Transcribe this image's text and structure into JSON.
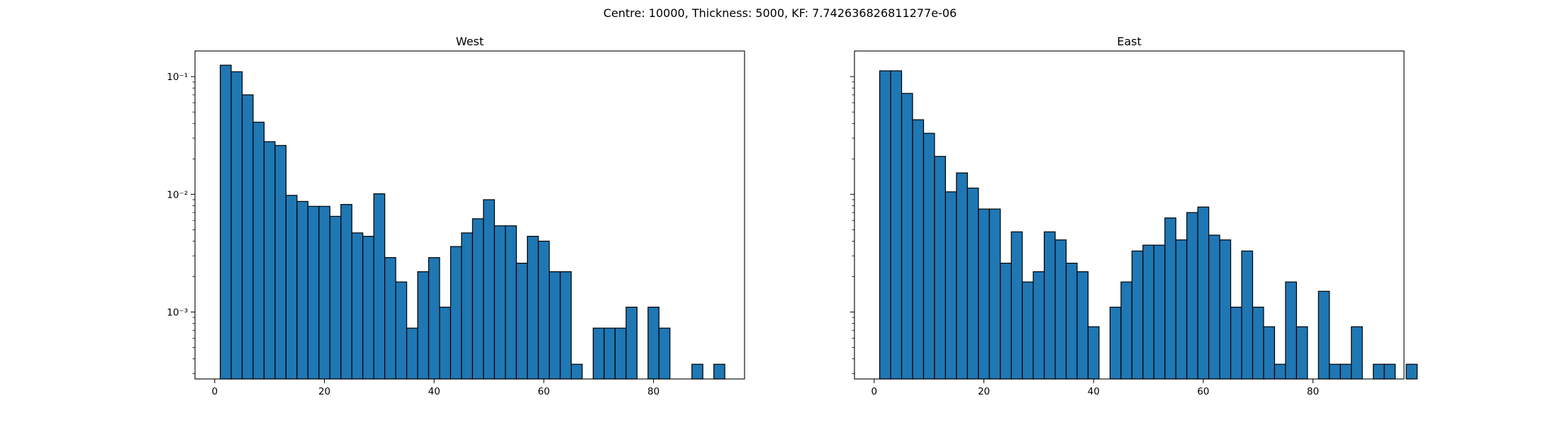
{
  "suptitle": "Centre: 10000, Thickness: 5000, KF: 7.742636826811277e-06",
  "colors": {
    "bar_fill": "#1f77b4",
    "bar_edge": "#000000",
    "axes": "#000000"
  },
  "chart_data": [
    {
      "type": "bar",
      "title": "West",
      "yscale": "log",
      "xlim": [
        -3.6,
        96.6
      ],
      "ylim": [
        0.00027,
        0.165
      ],
      "bin_width": 2,
      "x_start": 1,
      "xticks": [
        0,
        20,
        40,
        60,
        80
      ],
      "yticks": [
        {
          "value": 0.001,
          "label": "10⁻³"
        },
        {
          "value": 0.01,
          "label": "10⁻²"
        },
        {
          "value": 0.1,
          "label": "10⁻¹"
        }
      ],
      "values": [
        0.125,
        0.11,
        0.07,
        0.041,
        0.028,
        0.026,
        0.0098,
        0.0087,
        0.0079,
        0.0079,
        0.0065,
        0.0082,
        0.0047,
        0.0044,
        0.0101,
        0.0029,
        0.0018,
        0.00073,
        0.0022,
        0.0029,
        0.0011,
        0.0036,
        0.0047,
        0.0062,
        0.009,
        0.0054,
        0.0054,
        0.0026,
        0.0044,
        0.004,
        0.0022,
        0.0022,
        0.00036,
        0,
        0.00073,
        0.00073,
        0.00073,
        0.0011,
        0,
        0.0011,
        0.00073,
        0,
        0,
        0.00036,
        0,
        0.00036,
        0,
        0
      ]
    },
    {
      "type": "bar",
      "title": "East",
      "yscale": "log",
      "xlim": [
        -3.6,
        96.6
      ],
      "ylim": [
        0.00027,
        0.165
      ],
      "bin_width": 2,
      "x_start": 1,
      "xticks": [
        0,
        20,
        40,
        60,
        80
      ],
      "yticks": [
        {
          "value": 0.001,
          "label": ""
        },
        {
          "value": 0.01,
          "label": ""
        },
        {
          "value": 0.1,
          "label": ""
        }
      ],
      "values": [
        0.112,
        0.112,
        0.072,
        0.043,
        0.033,
        0.021,
        0.0105,
        0.0152,
        0.0113,
        0.0075,
        0.0075,
        0.0026,
        0.0048,
        0.0018,
        0.0022,
        0.0048,
        0.0041,
        0.0026,
        0.0022,
        0.00075,
        0,
        0.0011,
        0.0018,
        0.0033,
        0.0037,
        0.0037,
        0.0063,
        0.0041,
        0.007,
        0.0078,
        0.0045,
        0.0041,
        0.0011,
        0.0033,
        0.0011,
        0.00075,
        0.00036,
        0.0018,
        0.00075,
        0,
        0.0015,
        0.00036,
        0.00036,
        0.00075,
        0,
        0.00036,
        0.00036,
        0,
        0.00036
      ]
    }
  ]
}
